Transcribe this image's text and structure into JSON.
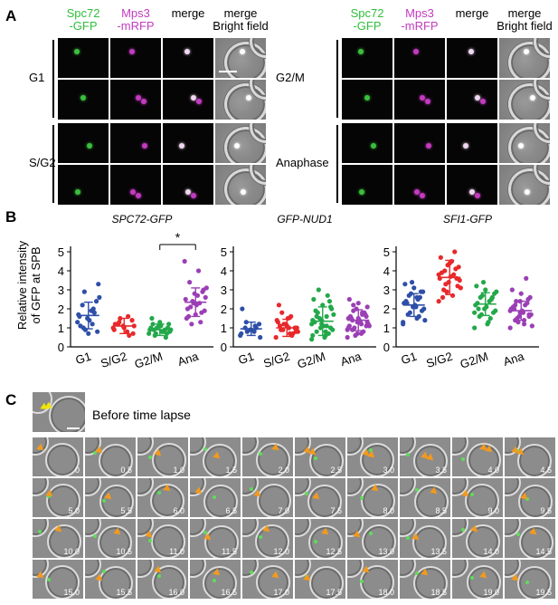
{
  "panel_a": {
    "letter": "A",
    "left": {
      "headers": [
        {
          "line1": "Spc72",
          "line2": "-GFP",
          "color": "green"
        },
        {
          "line1": "Mps3",
          "line2": "-mRFP",
          "color": "magenta"
        },
        {
          "line1": "merge",
          "line2": "",
          "color": "black"
        },
        {
          "line1": "merge",
          "line2": "Bright field",
          "color": "black"
        }
      ],
      "groups": [
        "G1",
        "S/G2"
      ]
    },
    "right": {
      "headers": [
        {
          "line1": "Spc72",
          "line2": "-GFP",
          "color": "green"
        },
        {
          "line1": "Mps3",
          "line2": "-mRFP",
          "color": "magenta"
        },
        {
          "line1": "merge",
          "line2": "",
          "color": "black"
        },
        {
          "line1": "merge",
          "line2": "Bright field",
          "color": "black"
        }
      ],
      "groups": [
        "G2/M",
        "Anaphase"
      ]
    }
  },
  "panel_b": {
    "letter": "B",
    "ylabel_line1": "Relative intensity",
    "ylabel_line2": "of GFP at SPB",
    "significance": "*"
  },
  "chart_data": [
    {
      "type": "scatter",
      "title": "SPC72-GFP",
      "categories": [
        "G1",
        "S/G2",
        "G2/M",
        "Ana"
      ],
      "ylim": [
        0,
        5
      ],
      "yticks": [
        "0",
        "1",
        "2",
        "3",
        "4",
        "5"
      ],
      "colors": [
        "#2e4fa8",
        "#e8282a",
        "#23a84a",
        "#9b3fb5"
      ],
      "means": [
        1.65,
        1.1,
        0.9,
        2.35
      ],
      "sds": [
        0.7,
        0.4,
        0.3,
        0.75
      ],
      "points": [
        [
          1.3,
          1.9,
          2.2,
          2.4,
          1.5,
          1.7,
          1.2,
          1.0,
          0.8,
          0.7,
          1.6,
          2.0,
          2.9,
          3.3,
          1.4,
          1.1,
          1.8,
          0.9,
          2.6
        ],
        [
          1.0,
          0.8,
          1.2,
          1.4,
          1.1,
          0.9,
          1.6,
          1.3,
          0.7,
          1.0,
          1.2,
          0.6,
          1.5,
          1.1
        ],
        [
          0.7,
          0.8,
          0.9,
          1.0,
          1.1,
          0.9,
          0.8,
          0.6,
          1.2,
          1.3,
          1.0,
          0.9,
          0.7,
          0.8,
          1.1,
          1.5,
          0.5,
          1.0,
          0.9,
          0.8,
          1.2,
          0.7
        ],
        [
          4.5,
          4.0,
          3.4,
          3.0,
          2.8,
          2.5,
          2.3,
          2.1,
          1.9,
          1.7,
          1.5,
          1.3,
          1.2,
          2.6,
          2.2,
          2.0,
          1.8,
          2.4,
          3.1,
          2.7,
          1.6,
          2.9,
          2.3
        ]
      ]
    },
    {
      "type": "scatter",
      "title": "GFP-NUD1",
      "categories": [
        "G1",
        "S/G2",
        "G2/M",
        "Ana"
      ],
      "ylim": [
        0,
        5
      ],
      "yticks": [
        "0",
        "1",
        "2",
        "3",
        "4",
        "5"
      ],
      "colors": [
        "#2e4fa8",
        "#e8282a",
        "#23a84a",
        "#9b3fb5"
      ],
      "means": [
        0.95,
        1.0,
        1.35,
        1.4
      ],
      "sds": [
        0.35,
        0.45,
        0.75,
        0.55
      ],
      "points": [
        [
          0.6,
          0.8,
          1.0,
          1.2,
          0.9,
          0.7,
          1.1,
          1.3,
          0.5,
          0.9,
          2.0,
          1.0,
          0.8
        ],
        [
          0.5,
          0.7,
          0.9,
          1.0,
          1.2,
          1.4,
          1.6,
          1.8,
          0.8,
          1.1,
          1.3,
          0.6,
          0.9,
          1.0,
          1.5,
          2.2,
          0.7,
          1.2,
          0.8,
          1.0,
          1.1
        ],
        [
          0.4,
          0.6,
          0.8,
          1.0,
          1.2,
          1.4,
          1.6,
          1.8,
          2.0,
          2.2,
          2.5,
          2.7,
          3.0,
          0.9,
          1.1,
          1.3,
          0.7,
          1.5,
          1.7,
          0.5,
          1.9,
          2.4,
          1.0,
          1.2,
          0.8,
          1.6,
          2.1,
          1.4,
          0.6,
          1.1
        ],
        [
          0.5,
          0.7,
          0.9,
          1.1,
          1.3,
          1.5,
          1.7,
          1.9,
          2.1,
          2.3,
          2.5,
          0.8,
          1.0,
          1.2,
          1.4,
          1.6,
          1.8,
          0.6,
          1.1,
          1.3,
          1.5,
          1.7,
          2.0,
          0.9,
          1.2,
          1.4,
          1.6,
          0.7,
          1.0,
          1.8,
          2.2,
          1.3,
          1.5,
          1.1
        ]
      ]
    },
    {
      "type": "scatter",
      "title": "SFI1-GFP",
      "categories": [
        "G1",
        "S/G2",
        "G2/M",
        "Ana"
      ],
      "ylim": [
        0,
        5
      ],
      "yticks": [
        "0",
        "1",
        "2",
        "3",
        "4",
        "5"
      ],
      "colors": [
        "#2e4fa8",
        "#e8282a",
        "#23a84a",
        "#9b3fb5"
      ],
      "means": [
        2.2,
        3.65,
        2.25,
        1.9
      ],
      "sds": [
        0.6,
        0.9,
        0.6,
        0.5
      ],
      "points": [
        [
          1.2,
          1.5,
          1.7,
          1.9,
          2.1,
          2.3,
          2.5,
          2.7,
          2.9,
          3.1,
          3.3,
          1.6,
          1.8,
          2.0,
          2.2,
          2.4,
          2.6,
          2.8,
          1.4,
          2.1,
          2.3,
          2.9,
          3.4,
          1.3,
          2.6
        ],
        [
          2.4,
          2.7,
          3.0,
          3.2,
          3.4,
          3.6,
          3.8,
          4.0,
          4.2,
          4.4,
          4.7,
          5.0,
          3.3,
          3.5,
          3.7,
          3.9,
          4.1,
          2.9,
          3.1,
          4.5,
          2.6,
          3.6,
          4.3,
          3.8
        ],
        [
          1.0,
          1.3,
          1.6,
          1.8,
          2.0,
          2.2,
          2.4,
          2.6,
          2.8,
          3.0,
          3.2,
          1.5,
          1.7,
          1.9,
          2.1,
          2.3,
          2.5,
          2.7,
          2.9,
          1.2,
          2.0,
          2.6,
          3.4,
          1.8
        ],
        [
          1.0,
          1.2,
          1.4,
          1.6,
          1.8,
          2.0,
          2.2,
          2.4,
          2.6,
          2.8,
          3.0,
          3.6,
          1.5,
          1.7,
          1.9,
          2.1,
          2.3,
          1.3,
          1.1,
          1.8,
          2.0,
          2.5,
          1.6,
          1.9,
          1.4,
          2.2,
          1.7,
          2.4
        ]
      ]
    }
  ],
  "panel_c": {
    "letter": "C",
    "before_label": "Before time lapse",
    "timepoints": [
      "0",
      "0.5",
      "1.0",
      "1.5",
      "2.0",
      "2.5",
      "3.0",
      "3.5",
      "4.0",
      "4.5",
      "5.0",
      "5.5",
      "6.0",
      "6.5",
      "7.0",
      "7.5",
      "8.0",
      "8.5",
      "9.0",
      "9.5",
      "10.0",
      "10.5",
      "11.0",
      "11.5",
      "12.0",
      "12.5",
      "13.0",
      "13.5",
      "14.0",
      "14.5",
      "15.0",
      "15.5",
      "16.0",
      "16.5",
      "17.0",
      "17.5",
      "18.0",
      "18.5",
      "19.0",
      "19.5"
    ]
  }
}
